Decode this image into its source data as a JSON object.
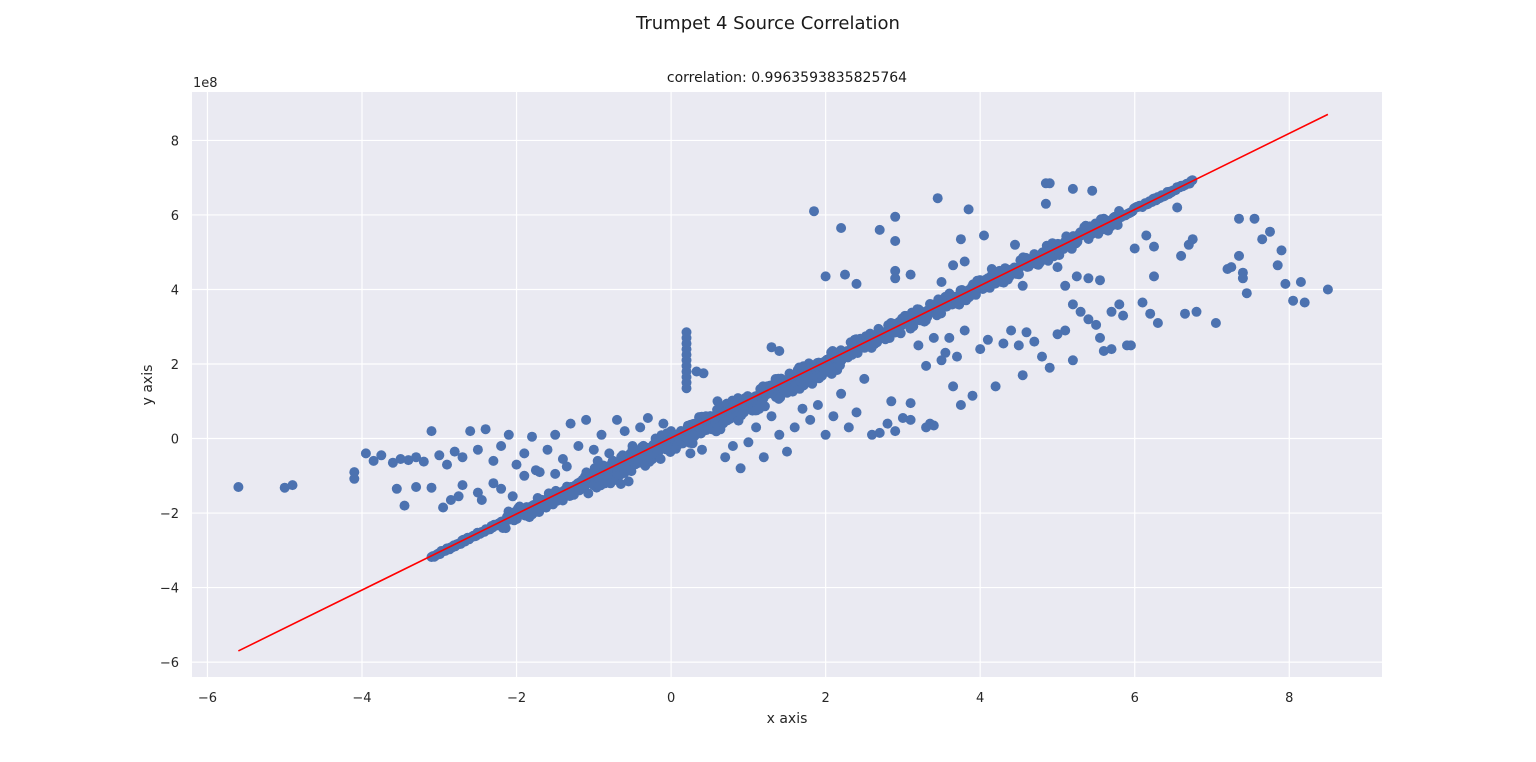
{
  "chart_data": {
    "type": "scatter",
    "title": "Trumpet 4 Source Correlation",
    "subtitle": "correlation: 0.9963593835825764",
    "xlabel": "x axis",
    "ylabel": "y axis",
    "y_offset_label": "1e8",
    "xlim": [
      -6.2,
      9.2
    ],
    "ylim": [
      -6.4,
      9.3
    ],
    "xticks": [
      -6,
      -4,
      -2,
      0,
      2,
      4,
      6,
      8
    ],
    "xtick_labels": [
      "−6",
      "−4",
      "−2",
      "0",
      "2",
      "4",
      "6",
      "8"
    ],
    "yticks": [
      -6,
      -4,
      -2,
      0,
      2,
      4,
      6,
      8
    ],
    "ytick_labels": [
      "−6",
      "−4",
      "−2",
      "0",
      "2",
      "4",
      "6",
      "8"
    ],
    "grid": true,
    "background_color": "#eaeaf2",
    "point_color": "#4c72b0",
    "line_color": "#ff0000",
    "fit_line": {
      "x": [
        -5.6,
        8.5
      ],
      "y": [
        -5.7,
        8.7
      ]
    },
    "main_band": {
      "x_start": -3.1,
      "x_end": 6.75,
      "slope": 1.025,
      "intercept": 0.0
    },
    "outliers": [
      [
        -5.6,
        -1.3
      ],
      [
        -5.0,
        -1.32
      ],
      [
        -4.9,
        -1.25
      ],
      [
        -4.1,
        -0.9
      ],
      [
        -4.1,
        -1.08
      ],
      [
        -3.95,
        -0.4
      ],
      [
        -3.85,
        -0.6
      ],
      [
        -3.75,
        -0.45
      ],
      [
        -3.6,
        -0.65
      ],
      [
        -3.5,
        -0.55
      ],
      [
        -3.4,
        -0.58
      ],
      [
        -3.3,
        -0.5
      ],
      [
        -3.2,
        -0.62
      ],
      [
        -3.1,
        0.2
      ],
      [
        -3.0,
        -0.45
      ],
      [
        -2.9,
        -0.7
      ],
      [
        -2.8,
        -0.35
      ],
      [
        -2.7,
        -0.5
      ],
      [
        -2.6,
        0.2
      ],
      [
        -2.5,
        -0.3
      ],
      [
        -2.4,
        0.25
      ],
      [
        -2.3,
        -0.6
      ],
      [
        -2.2,
        -0.2
      ],
      [
        -2.1,
        0.1
      ],
      [
        -2.0,
        -0.7
      ],
      [
        -1.9,
        -0.4
      ],
      [
        -1.8,
        0.05
      ],
      [
        -1.7,
        -0.9
      ],
      [
        -1.6,
        -0.3
      ],
      [
        -1.5,
        0.1
      ],
      [
        -1.4,
        -0.55
      ],
      [
        -1.3,
        0.4
      ],
      [
        -1.2,
        -0.2
      ],
      [
        -1.1,
        0.5
      ],
      [
        -1.0,
        -0.3
      ],
      [
        -0.9,
        0.1
      ],
      [
        -0.8,
        -0.4
      ],
      [
        -0.7,
        0.5
      ],
      [
        -0.6,
        0.2
      ],
      [
        -0.5,
        -0.2
      ],
      [
        -0.4,
        0.3
      ],
      [
        -0.3,
        0.55
      ],
      [
        -0.2,
        0.0
      ],
      [
        -0.1,
        0.4
      ],
      [
        0.0,
        0.2
      ],
      [
        -3.3,
        -1.3
      ],
      [
        -3.1,
        -1.32
      ],
      [
        -2.95,
        -1.85
      ],
      [
        -2.85,
        -1.65
      ],
      [
        -2.75,
        -1.55
      ],
      [
        -2.7,
        -1.25
      ],
      [
        -2.5,
        -1.45
      ],
      [
        -2.45,
        -1.65
      ],
      [
        -2.3,
        -1.2
      ],
      [
        -2.2,
        -1.35
      ],
      [
        -2.05,
        -1.55
      ],
      [
        -1.9,
        -1.0
      ],
      [
        -1.75,
        -0.85
      ],
      [
        -0.65,
        -1.22
      ],
      [
        -0.55,
        -1.15
      ],
      [
        -3.45,
        -1.8
      ],
      [
        -3.55,
        -1.35
      ],
      [
        -1.5,
        -0.95
      ],
      [
        -1.35,
        -0.75
      ],
      [
        -0.95,
        -0.6
      ],
      [
        0.25,
        -0.4
      ],
      [
        0.4,
        -0.3
      ],
      [
        0.5,
        0.6
      ],
      [
        0.6,
        1.0
      ],
      [
        0.7,
        -0.5
      ],
      [
        0.8,
        -0.2
      ],
      [
        0.9,
        -0.8
      ],
      [
        1.0,
        -0.1
      ],
      [
        1.1,
        0.3
      ],
      [
        1.2,
        -0.5
      ],
      [
        1.3,
        0.6
      ],
      [
        1.4,
        0.1
      ],
      [
        1.5,
        -0.35
      ],
      [
        1.6,
        0.3
      ],
      [
        1.7,
        0.8
      ],
      [
        1.8,
        0.5
      ],
      [
        1.9,
        0.9
      ],
      [
        2.0,
        0.1
      ],
      [
        2.1,
        0.6
      ],
      [
        2.2,
        1.2
      ],
      [
        2.3,
        0.3
      ],
      [
        2.4,
        0.7
      ],
      [
        2.5,
        1.6
      ],
      [
        2.6,
        0.1
      ],
      [
        2.8,
        0.4
      ],
      [
        2.9,
        0.2
      ],
      [
        3.0,
        0.55
      ],
      [
        3.1,
        0.5
      ],
      [
        3.3,
        0.3
      ],
      [
        3.4,
        0.35
      ],
      [
        0.33,
        1.8
      ],
      [
        0.42,
        1.75
      ],
      [
        1.3,
        2.45
      ],
      [
        1.4,
        2.35
      ],
      [
        0.45,
        0.6
      ],
      [
        0.2,
        1.35
      ],
      [
        0.2,
        1.5
      ],
      [
        0.2,
        1.65
      ],
      [
        0.2,
        1.8
      ],
      [
        0.2,
        1.95
      ],
      [
        0.2,
        2.1
      ],
      [
        0.2,
        2.25
      ],
      [
        0.2,
        2.4
      ],
      [
        0.2,
        2.55
      ],
      [
        0.2,
        2.7
      ],
      [
        0.2,
        2.85
      ],
      [
        1.85,
        6.1
      ],
      [
        2.2,
        5.65
      ],
      [
        2.7,
        5.6
      ],
      [
        2.9,
        5.3
      ],
      [
        2.9,
        5.95
      ],
      [
        3.45,
        6.45
      ],
      [
        3.85,
        6.15
      ],
      [
        4.05,
        5.45
      ],
      [
        3.75,
        5.35
      ],
      [
        2.0,
        4.35
      ],
      [
        2.25,
        4.4
      ],
      [
        2.4,
        4.15
      ],
      [
        2.9,
        4.5
      ],
      [
        2.9,
        4.3
      ],
      [
        3.1,
        4.4
      ],
      [
        3.5,
        4.2
      ],
      [
        3.65,
        4.65
      ],
      [
        3.8,
        4.75
      ],
      [
        4.1,
        4.3
      ],
      [
        4.15,
        4.55
      ],
      [
        4.45,
        5.2
      ],
      [
        4.55,
        4.1
      ],
      [
        4.7,
        4.95
      ],
      [
        4.85,
        6.85
      ],
      [
        4.9,
        6.85
      ],
      [
        4.85,
        6.3
      ],
      [
        5.2,
        6.7
      ],
      [
        5.45,
        6.65
      ],
      [
        5.0,
        4.6
      ],
      [
        5.1,
        4.1
      ],
      [
        5.25,
        4.35
      ],
      [
        5.4,
        4.3
      ],
      [
        5.55,
        4.25
      ],
      [
        5.7,
        3.4
      ],
      [
        5.8,
        3.6
      ],
      [
        5.2,
        3.6
      ],
      [
        5.3,
        3.4
      ],
      [
        5.4,
        3.2
      ],
      [
        5.5,
        3.05
      ],
      [
        5.55,
        2.7
      ],
      [
        5.6,
        2.35
      ],
      [
        5.7,
        2.4
      ],
      [
        5.85,
        3.3
      ],
      [
        5.9,
        2.5
      ],
      [
        5.95,
        2.5
      ],
      [
        6.0,
        5.1
      ],
      [
        6.15,
        5.45
      ],
      [
        6.25,
        5.15
      ],
      [
        6.3,
        3.1
      ],
      [
        6.1,
        3.65
      ],
      [
        6.2,
        3.35
      ],
      [
        6.25,
        4.35
      ],
      [
        6.55,
        6.2
      ],
      [
        6.6,
        4.9
      ],
      [
        6.65,
        3.35
      ],
      [
        6.7,
        5.2
      ],
      [
        6.75,
        5.35
      ],
      [
        6.8,
        3.4
      ],
      [
        7.05,
        3.1
      ],
      [
        7.2,
        4.55
      ],
      [
        7.25,
        4.6
      ],
      [
        7.35,
        5.9
      ],
      [
        7.35,
        4.9
      ],
      [
        7.4,
        4.45
      ],
      [
        7.4,
        4.3
      ],
      [
        7.45,
        3.9
      ],
      [
        7.55,
        5.9
      ],
      [
        7.65,
        5.35
      ],
      [
        7.75,
        5.55
      ],
      [
        7.85,
        4.65
      ],
      [
        7.9,
        5.05
      ],
      [
        7.95,
        4.15
      ],
      [
        8.05,
        3.7
      ],
      [
        8.15,
        4.2
      ],
      [
        8.2,
        3.65
      ],
      [
        8.5,
        4.0
      ],
      [
        3.5,
        2.1
      ],
      [
        3.6,
        2.7
      ],
      [
        3.7,
        2.2
      ],
      [
        3.8,
        2.9
      ],
      [
        3.9,
        1.15
      ],
      [
        4.0,
        2.4
      ],
      [
        4.1,
        2.65
      ],
      [
        4.2,
        1.4
      ],
      [
        4.3,
        2.55
      ],
      [
        4.4,
        2.9
      ],
      [
        4.5,
        2.5
      ],
      [
        4.55,
        1.7
      ],
      [
        4.6,
        2.85
      ],
      [
        4.7,
        2.6
      ],
      [
        4.8,
        2.2
      ],
      [
        4.9,
        1.9
      ],
      [
        5.0,
        2.8
      ],
      [
        5.1,
        2.9
      ],
      [
        5.2,
        2.1
      ],
      [
        3.2,
        2.5
      ],
      [
        3.3,
        1.95
      ],
      [
        3.4,
        2.7
      ],
      [
        3.55,
        2.3
      ],
      [
        3.65,
        1.4
      ],
      [
        3.75,
        0.9
      ],
      [
        3.35,
        0.4
      ],
      [
        3.1,
        0.95
      ],
      [
        2.85,
        1.0
      ],
      [
        2.7,
        0.15
      ]
    ]
  }
}
